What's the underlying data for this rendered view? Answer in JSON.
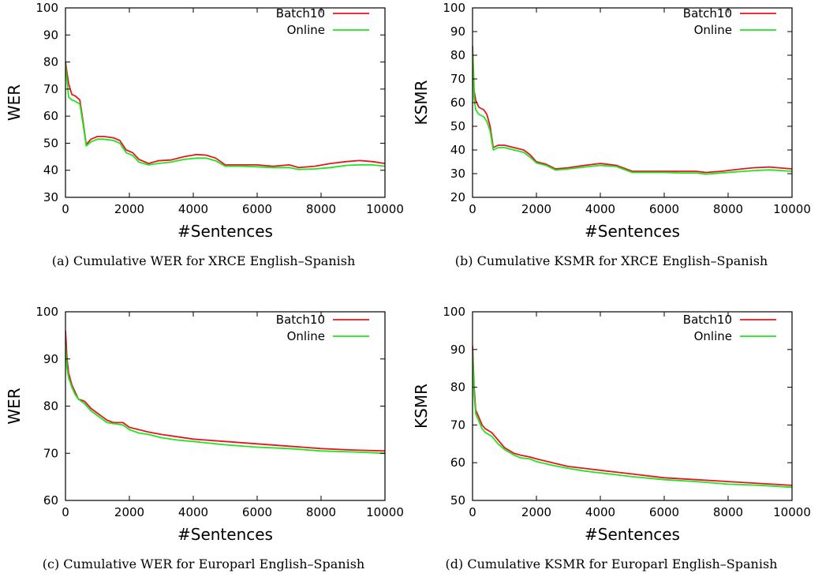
{
  "series_colors": {
    "Batch10": "#e8141e",
    "Online": "#1ee61e"
  },
  "chart_data": [
    {
      "type": "line",
      "caption": "(a) Cumulative WER for XRCE English–Spanish",
      "xlabel": "#Sentences",
      "ylabel": "WER",
      "xlim": [
        0,
        10000
      ],
      "ylim": [
        30,
        100
      ],
      "xticks": [
        0,
        2000,
        4000,
        6000,
        8000,
        10000
      ],
      "yticks": [
        30,
        40,
        50,
        60,
        70,
        80,
        90,
        100
      ],
      "legend": "top-right",
      "series": [
        {
          "name": "Batch10",
          "x": [
            0,
            100,
            200,
            300,
            450,
            550,
            650,
            800,
            1000,
            1200,
            1500,
            1700,
            1900,
            2100,
            2300,
            2600,
            2900,
            3300,
            3700,
            4100,
            4400,
            4700,
            5000,
            5500,
            6000,
            6500,
            7000,
            7300,
            7800,
            8300,
            8800,
            9200,
            9600,
            10000
          ],
          "y": [
            80,
            72,
            68,
            67.5,
            66,
            58,
            49.5,
            51.5,
            52.5,
            52.5,
            52,
            51,
            47.5,
            46.5,
            44,
            42.5,
            43.5,
            43.8,
            45,
            45.8,
            45.6,
            44.5,
            42,
            42,
            42,
            41.5,
            42,
            41,
            41.5,
            42.5,
            43.2,
            43.6,
            43.2,
            42.5
          ]
        },
        {
          "name": "Online",
          "x": [
            0,
            100,
            200,
            300,
            450,
            550,
            650,
            800,
            1000,
            1200,
            1500,
            1700,
            1900,
            2100,
            2300,
            2600,
            2900,
            3300,
            3700,
            4100,
            4400,
            4700,
            5000,
            5500,
            6000,
            6500,
            7000,
            7300,
            7800,
            8300,
            8800,
            9200,
            9600,
            10000
          ],
          "y": [
            79,
            67,
            66,
            65.5,
            64.5,
            57,
            49,
            50.5,
            51.5,
            51.5,
            51,
            50,
            46.5,
            45.5,
            43,
            42,
            42.5,
            43,
            44,
            44.5,
            44.5,
            43.5,
            41.5,
            41.5,
            41.3,
            41,
            41,
            40.3,
            40.5,
            41,
            41.8,
            42,
            42,
            41.5
          ]
        }
      ]
    },
    {
      "type": "line",
      "caption": "(b) Cumulative KSMR for XRCE English–Spanish",
      "xlabel": "#Sentences",
      "ylabel": "KSMR",
      "xlim": [
        0,
        10000
      ],
      "ylim": [
        20,
        100
      ],
      "xticks": [
        0,
        2000,
        4000,
        6000,
        8000,
        10000
      ],
      "yticks": [
        20,
        30,
        40,
        50,
        60,
        70,
        80,
        90,
        100
      ],
      "legend": "top-right",
      "series": [
        {
          "name": "Batch10",
          "x": [
            0,
            50,
            100,
            200,
            350,
            450,
            550,
            650,
            800,
            1000,
            1300,
            1600,
            1800,
            2000,
            2300,
            2600,
            3000,
            3500,
            4000,
            4500,
            5000,
            5500,
            6000,
            6500,
            7000,
            7300,
            7800,
            8300,
            8800,
            9300,
            10000
          ],
          "y": [
            84,
            65,
            61,
            58,
            57,
            55,
            50,
            41,
            42,
            42,
            41,
            40,
            38,
            35,
            34,
            32,
            32.5,
            33.5,
            34.3,
            33.5,
            31,
            31,
            31,
            31,
            31,
            30.5,
            31,
            31.8,
            32.5,
            32.8,
            32
          ]
        },
        {
          "name": "Online",
          "x": [
            0,
            50,
            100,
            200,
            350,
            450,
            550,
            650,
            800,
            1000,
            1300,
            1600,
            1800,
            2000,
            2300,
            2600,
            3000,
            3500,
            4000,
            4500,
            5000,
            5500,
            6000,
            6500,
            7000,
            7300,
            7800,
            8300,
            8800,
            9300,
            10000
          ],
          "y": [
            82,
            62,
            57,
            55,
            54,
            52,
            48,
            40,
            41,
            41,
            40,
            39,
            37,
            34.5,
            33.5,
            31.5,
            32,
            32.8,
            33.5,
            33,
            30.5,
            30.5,
            30.5,
            30.3,
            30.3,
            29.8,
            30.3,
            30.8,
            31.3,
            31.6,
            31
          ]
        }
      ]
    },
    {
      "type": "line",
      "caption": "(c) Cumulative WER for Europarl English–Spanish",
      "xlabel": "#Sentences",
      "ylabel": "WER",
      "xlim": [
        0,
        10000
      ],
      "ylim": [
        60,
        100
      ],
      "xticks": [
        0,
        2000,
        4000,
        6000,
        8000,
        10000
      ],
      "yticks": [
        60,
        70,
        80,
        90,
        100
      ],
      "legend": "top-right",
      "series": [
        {
          "name": "Batch10",
          "x": [
            0,
            50,
            100,
            200,
            300,
            400,
            600,
            800,
            1000,
            1300,
            1500,
            1800,
            2000,
            2300,
            2600,
            3000,
            3500,
            4000,
            5000,
            6000,
            7000,
            8000,
            9000,
            10000
          ],
          "y": [
            96,
            90,
            87,
            84.5,
            83,
            81.5,
            81,
            79.5,
            78.5,
            77,
            76.5,
            76.5,
            75.5,
            75,
            74.5,
            74,
            73.5,
            73,
            72.5,
            72,
            71.5,
            71,
            70.7,
            70.5
          ]
        },
        {
          "name": "Online",
          "x": [
            0,
            50,
            100,
            200,
            300,
            400,
            600,
            800,
            1000,
            1300,
            1500,
            1800,
            2000,
            2300,
            2600,
            3000,
            3500,
            4000,
            5000,
            6000,
            7000,
            8000,
            9000,
            10000
          ],
          "y": [
            93,
            88,
            86,
            84,
            82.5,
            81.5,
            80.5,
            79,
            78,
            76.5,
            76.3,
            76,
            75,
            74.3,
            74,
            73.3,
            72.8,
            72.5,
            71.8,
            71.3,
            71,
            70.5,
            70.3,
            70
          ]
        }
      ]
    },
    {
      "type": "line",
      "caption": "(d) Cumulative KSMR for Europarl English–Spanish",
      "xlabel": "#Sentences",
      "ylabel": "KSMR",
      "xlim": [
        0,
        10000
      ],
      "ylim": [
        50,
        100
      ],
      "xticks": [
        0,
        2000,
        4000,
        6000,
        8000,
        10000
      ],
      "yticks": [
        50,
        60,
        70,
        80,
        90,
        100
      ],
      "legend": "top-right",
      "series": [
        {
          "name": "Batch10",
          "x": [
            0,
            50,
            100,
            200,
            300,
            400,
            600,
            800,
            1000,
            1300,
            1500,
            1800,
            2000,
            2500,
            3000,
            3500,
            4000,
            5000,
            6000,
            7000,
            8000,
            9000,
            10000
          ],
          "y": [
            91,
            80,
            74,
            72,
            70,
            69,
            68,
            66,
            64,
            62.5,
            62,
            61.5,
            61,
            60,
            59,
            58.5,
            58,
            57,
            56,
            55.5,
            55,
            54.5,
            54
          ]
        },
        {
          "name": "Online",
          "x": [
            0,
            50,
            100,
            200,
            300,
            400,
            600,
            800,
            1000,
            1300,
            1500,
            1800,
            2000,
            2500,
            3000,
            3500,
            4000,
            5000,
            6000,
            7000,
            8000,
            9000,
            10000
          ],
          "y": [
            89,
            78,
            73,
            71,
            69,
            68,
            67,
            65,
            63.5,
            62,
            61.3,
            61,
            60.3,
            59.3,
            58.5,
            57.8,
            57.3,
            56.3,
            55.5,
            55,
            54.3,
            54,
            53.5
          ]
        }
      ]
    }
  ]
}
